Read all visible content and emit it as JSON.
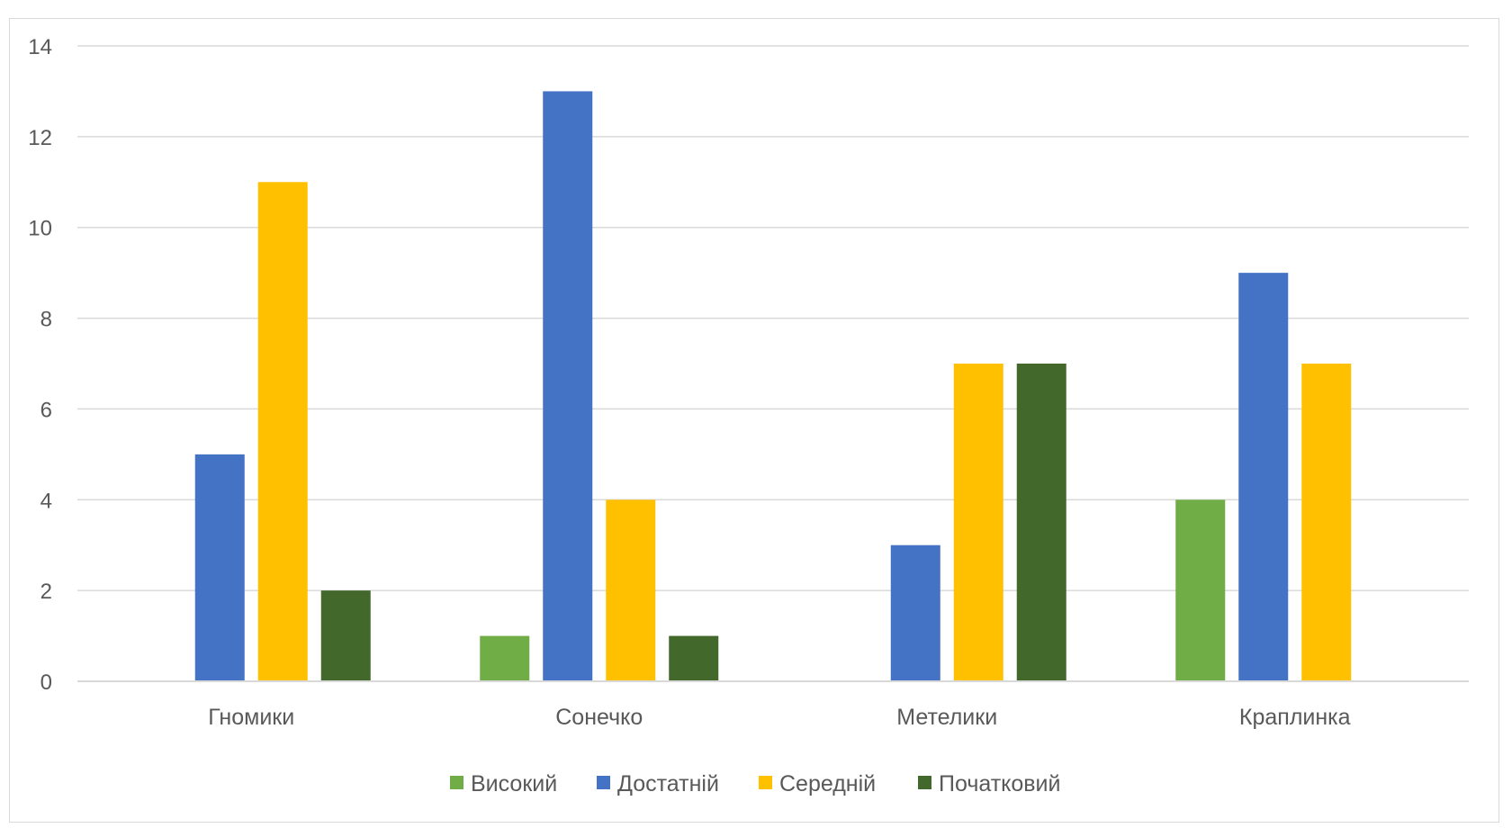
{
  "chart_data": {
    "type": "bar",
    "title": "",
    "xlabel": "",
    "ylabel": "",
    "categories": [
      "Гномики",
      "Сонечко",
      "Метелики",
      "Краплинка"
    ],
    "series": [
      {
        "name": "Високий",
        "color": "#70ad47",
        "values": [
          0,
          1,
          0,
          4
        ]
      },
      {
        "name": "Достатній",
        "color": "#4472c4",
        "values": [
          5,
          13,
          3,
          9
        ]
      },
      {
        "name": "Середній",
        "color": "#ffc000",
        "values": [
          11,
          4,
          7,
          7
        ]
      },
      {
        "name": "Початковий",
        "color": "#43682b",
        "values": [
          2,
          1,
          7,
          0
        ]
      }
    ],
    "ylim": [
      0,
      14
    ],
    "yticks": [
      0,
      2,
      4,
      6,
      8,
      10,
      12,
      14
    ],
    "grid": true,
    "legend_position": "bottom"
  }
}
